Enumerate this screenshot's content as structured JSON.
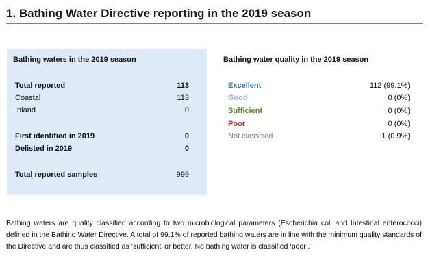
{
  "title": "1.  Bathing Water Directive reporting in the 2019 season",
  "season_panel": {
    "heading": "Bathing waters in the 2019 season",
    "rows": [
      {
        "label": "Total reported",
        "value": "113",
        "bold": true
      },
      {
        "label": "Coastal",
        "value": "113",
        "bold": false
      },
      {
        "label": "Inland",
        "value": "0",
        "bold": false
      },
      {
        "label": "First identified in 2019",
        "value": "0",
        "bold": true
      },
      {
        "label": "Delisted in 2019",
        "value": "0",
        "bold": true
      },
      {
        "label": "Total reported samples",
        "value": "999",
        "bold": true
      }
    ]
  },
  "quality": {
    "heading": "Bathing water quality in the 2019 season",
    "rows": [
      {
        "label": "Excellent",
        "value": "112 (99.1%)",
        "color": "#2e6fb7"
      },
      {
        "label": "Good",
        "value": "0 (0%)",
        "color": "#8fb4df"
      },
      {
        "label": "Sufficient",
        "value": "0 (0%)",
        "color": "#5d8a2a"
      },
      {
        "label": "Poor",
        "value": "0 (0%)",
        "color": "#e0201b"
      },
      {
        "label": "Not classified",
        "value": "1 (0.9%)",
        "color": "#7f7f7f"
      }
    ]
  },
  "paragraph": "Bathing waters are quality classified according to two microbiological parameters (Escherichia coli and Intestinal enterococci) defined in the Bathing Water Directive. A total of 99.1% of reported bathing waters are in line with the minimum quality standards of the Directive and are thus classified as ‘sufficient’ or better. No bathing water is classified ‘poor’."
}
